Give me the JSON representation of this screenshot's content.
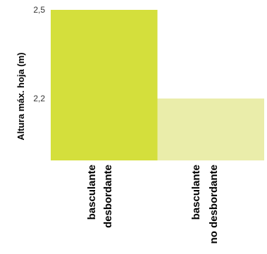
{
  "chart_data": {
    "type": "bar",
    "title": "",
    "xlabel": "",
    "ylabel": "Altura máx. hoja (m)",
    "categories": [
      [
        "basculante",
        "desbordante"
      ],
      [
        "basculante",
        "no desbordante"
      ]
    ],
    "values": [
      2.5,
      2.2
    ],
    "ylim": [
      2.0,
      2.5
    ],
    "yticks": [
      {
        "value": 2.5,
        "label": "2,5"
      },
      {
        "value": 2.2,
        "label": "2,2"
      }
    ],
    "grid": false,
    "legend": "none",
    "colors": [
      "#d4df3c",
      "#eaedaa"
    ]
  }
}
